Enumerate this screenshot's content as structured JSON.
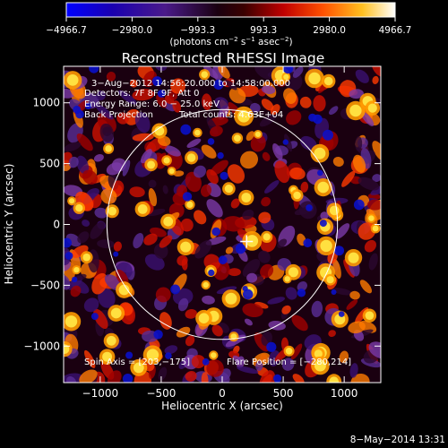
{
  "chart_data": {
    "type": "heatmap",
    "title": "Reconstructed RHESSI Image",
    "xlabel": "Heliocentric X (arcsec)",
    "ylabel": "Heliocentric Y (arcsec)",
    "xlim": [
      -1300,
      1300
    ],
    "ylim": [
      -1300,
      1300
    ],
    "xticks": [
      -1000,
      -500,
      0,
      500,
      1000
    ],
    "yticks": [
      -1000,
      -500,
      0,
      500,
      1000
    ],
    "xtick_labels": [
      "−1000",
      "−500",
      "0",
      "500",
      "1000"
    ],
    "ytick_labels": [
      "−1000",
      "−500",
      "0",
      "500",
      "1000"
    ],
    "colorbar": {
      "min": -4966.7,
      "max": 4966.7,
      "tick_values": [
        -4966.7,
        -2980.0,
        -993.3,
        993.3,
        2980.0,
        4966.7
      ],
      "tick_labels": [
        "−4966.7",
        "−2980.0",
        "−993.3",
        "993.3",
        "2980.0",
        "4966.7"
      ],
      "colors": [
        "#0000ff",
        "#200050",
        "#5a2d96",
        "#1a0010",
        "#7a0000",
        "#ff2000",
        "#ff8a00",
        "#ffe040",
        "#ffffff"
      ],
      "unit_main": "(photons cm",
      "unit_sup1": "−2",
      "unit_mid": " s",
      "unit_sup2": "−1",
      "unit_end": " asec",
      "unit_sup3": "−2",
      "unit_close": ")"
    },
    "annotations": {
      "time_range": "3−Aug−2012 14:56:20.000 to 14:58:00.000",
      "detectors": "Detectors: 7F 8F 9F, Att 0",
      "energy_range": "Energy Range: 6.0 − 25.0 keV",
      "method": "Back Projection",
      "total_counts": "Total counts: 4.63E+04",
      "spin_axis": "Spin Axis = [203,−175]",
      "flare_position": "Flare Position = [−280,214]"
    },
    "solar_limb_radius_arcsec": 945,
    "marker": [
      200,
      -140
    ],
    "footer_date": "8−May−2014 13:31"
  }
}
